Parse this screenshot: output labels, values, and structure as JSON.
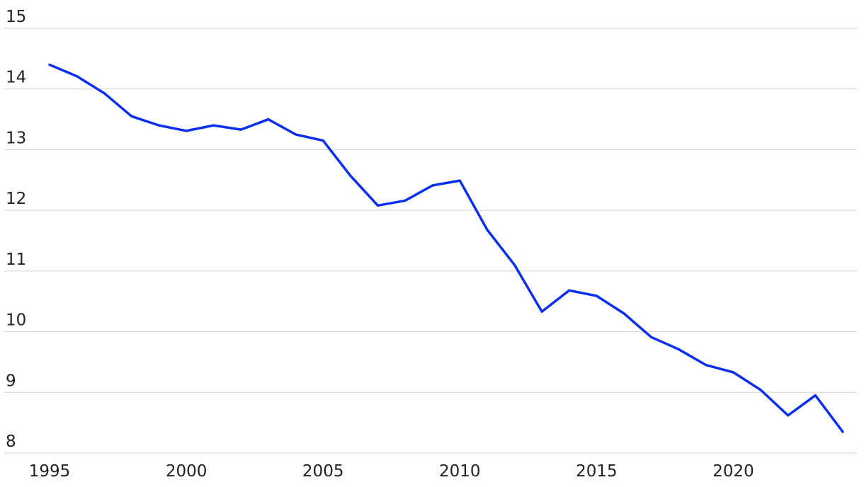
{
  "chart_data": {
    "type": "line",
    "title": "",
    "xlabel": "",
    "ylabel": "",
    "ylim": [
      8,
      15
    ],
    "xlim": [
      1995,
      2024
    ],
    "y_ticks": [
      "8",
      "9",
      "10",
      "11",
      "12",
      "13",
      "14",
      "15"
    ],
    "x_ticks": [
      "1995",
      "2000",
      "2005",
      "2010",
      "2015",
      "2020"
    ],
    "grid": "horizontal",
    "legend": "none",
    "x": [
      1995,
      1996,
      1997,
      1998,
      1999,
      2000,
      2001,
      2002,
      2003,
      2004,
      2005,
      2006,
      2007,
      2008,
      2009,
      2010,
      2011,
      2012,
      2013,
      2014,
      2015,
      2016,
      2017,
      2018,
      2019,
      2020,
      2021,
      2022,
      2023,
      2024
    ],
    "series": [
      {
        "color": "#0a2ff0",
        "values": [
          14.4,
          14.21,
          13.93,
          13.55,
          13.4,
          13.31,
          13.4,
          13.33,
          13.5,
          13.25,
          13.15,
          12.57,
          12.08,
          12.16,
          12.41,
          12.49,
          11.68,
          11.1,
          10.33,
          10.68,
          10.59,
          10.3,
          9.91,
          9.71,
          9.45,
          9.33,
          9.04,
          8.62,
          8.95,
          8.35
        ]
      }
    ]
  }
}
